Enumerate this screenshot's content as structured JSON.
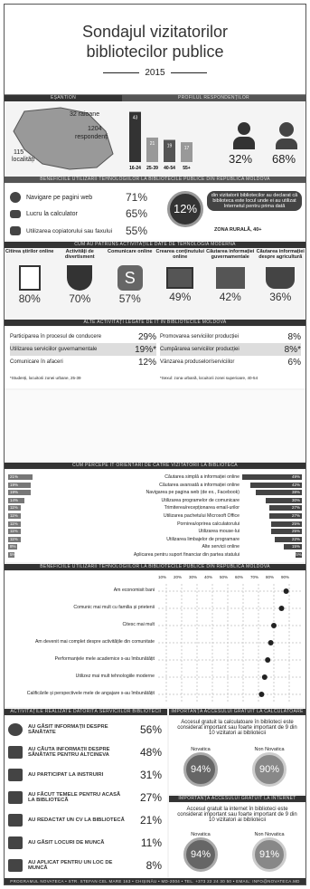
{
  "header": {
    "title_line1": "Sondajul vizitatorilor",
    "title_line2": "bibliotecilor publice",
    "year": "2015"
  },
  "sample": {
    "section_label": "EȘANTION",
    "profile_label": "PROFILUL RESPONDENȚILOR",
    "raioane": "32 raioane",
    "respondenti_count": "1204",
    "respondenti_label": "respondenți",
    "localitati_count": "115",
    "localitati_label": "localități",
    "age_values": [
      {
        "label": "16-24",
        "value": "43"
      },
      {
        "label": "25-39",
        "value": "21"
      },
      {
        "label": "40-54",
        "value": "19"
      },
      {
        "label": "55+",
        "value": "17"
      }
    ],
    "male_pct": "32%",
    "female_pct": "68%"
  },
  "benefits": {
    "section_label": "BENEFICIILE UTILIZĂRII TEHNOLOGIILOR LA BIBLIOTECILE PUBLICE DIN REPUBLICA MOLDOVA",
    "items": [
      {
        "label": "Navigare pe pagini web",
        "pct": "71%"
      },
      {
        "label": "Lucru la calculator",
        "pct": "65%"
      },
      {
        "label": "Utilizarea copiatorului sau faxului",
        "pct": "55%"
      }
    ],
    "highlight_pct": "12%",
    "highlight_text": "din vizitatorii bibliotecilor au declarat că biblioteca este locul unde ei au utilizat Internetul pentru prima dată",
    "highlight_note": "ZONA RURALĂ, 40+"
  },
  "activities": {
    "section_label": "CUM AU PĂTRUNS ACTIVITĂȚILE DATE DE TEHNOLOGIA MODERNĂ",
    "items": [
      {
        "label": "Citirea știrilor online",
        "pct": "80%"
      },
      {
        "label": "Activități de divertisment",
        "pct": "70%"
      },
      {
        "label": "Comunicare online",
        "pct": "57%"
      },
      {
        "label": "Crearea conținutului online",
        "pct": "49%"
      },
      {
        "label": "Căutarea informației guvernamentale",
        "pct": "42%"
      },
      {
        "label": "Căutarea informației despre agricultură",
        "pct": "36%"
      }
    ]
  },
  "other_activities": {
    "section_label": "ALTE ACTIVITĂȚI LEGATE DE IT ÎN BIBLIOTECILE MOLDOVA",
    "left": [
      {
        "label": "Participarea în procesul de conducere",
        "pct": "29%"
      },
      {
        "label": "Utilizarea serviciilor guvernamentale",
        "pct": "19%*"
      },
      {
        "label": "Comunicare în afaceri",
        "pct": "12%"
      }
    ],
    "right": [
      {
        "label": "Promovarea serviciilor producției",
        "pct": "8%"
      },
      {
        "label": "Cumpărarea serviciilor producției",
        "pct": "8%*"
      },
      {
        "label": "Vânzarea produselor/serviciilor",
        "pct": "6%"
      }
    ],
    "note_left": "*Studenți, locuitorii zonei urbane, 25-39",
    "note_right": "*Sexul: zona urbană, locuitorii zonei superioare, 40-54"
  },
  "services": {
    "section_label": "CUM PERCEPE IT ORIENTĂRI DE CĂTRE VIZITATORII LA BIBLIOTECĂ",
    "items": [
      {
        "label": "Căutarea simplă a informației online",
        "left_pct": "21%",
        "right_pct": "49%"
      },
      {
        "label": "Căutarea avansată a informației online",
        "left_pct": "19%",
        "right_pct": "42%"
      },
      {
        "label": "Navigarea pe pagina web (de ex., Facebook)",
        "left_pct": "19%",
        "right_pct": "38%"
      },
      {
        "label": "Utilizarea programelor de comunicare",
        "left_pct": "14%",
        "right_pct": "30%"
      },
      {
        "label": "Trimiterea/recepționarea email-urilor",
        "left_pct": "11%",
        "right_pct": "27%"
      },
      {
        "label": "Utilizarea pachetului Microsoft Office",
        "left_pct": "11%",
        "right_pct": "27%"
      },
      {
        "label": "Pornirea/oprirea calculatorului",
        "left_pct": "11%",
        "right_pct": "25%"
      },
      {
        "label": "Utilizarea mouse-lui",
        "left_pct": "11%",
        "right_pct": "25%"
      },
      {
        "label": "Utilizarea limbajelor de programare",
        "left_pct": "11%",
        "right_pct": "22%"
      },
      {
        "label": "Alte servicii online",
        "left_pct": "8%",
        "right_pct": "15%"
      },
      {
        "label": "Aplicarea pentru suport financiar din partea statului",
        "left_pct": "5%",
        "right_pct": "5%"
      }
    ]
  },
  "opinion": {
    "section_label": "BENEFICIILE UTILIZĂRII TEHNOLOGIILOR LA BIBLIOTECILE PUBLICE DIN REPUBLICA MOLDOVA",
    "axis_ticks": [
      "10%",
      "20%",
      "30%",
      "40%",
      "50%",
      "60%",
      "70%",
      "80%",
      "90%"
    ],
    "rows": [
      {
        "label": "Am economisit bani",
        "value": 88
      },
      {
        "label": "Comunic mai mult cu familia și prietenii",
        "value": 85
      },
      {
        "label": "Citesc mai mult",
        "value": 80
      },
      {
        "label": "Am devenit mai complet despre activitățile din comunitate",
        "value": 78
      },
      {
        "label": "Performanțele mele academice s-au îmbunătățit",
        "value": 76
      },
      {
        "label": "Utilizez mai mult tehnologiile moderne",
        "value": 74
      },
      {
        "label": "Calificările și perspectivele mele de angajare s-au îmbunătățit",
        "value": 72
      }
    ]
  },
  "outcomes": {
    "section_label": "ACTIVITĂȚILE REALIZATE DATORITĂ SERVICIILOR BIBLIOTECII",
    "items": [
      {
        "label": "AU GĂSIT INFORMAȚII DESPRE SĂNĂTATE",
        "pct": "56%"
      },
      {
        "label": "AU CĂUTA INFORMAȚII DESPRE SĂNĂTATE PENTRU ALTCINEVA",
        "pct": "48%"
      },
      {
        "label": "AU PARTICIPAT LA INSTRUIRI",
        "pct": "31%"
      },
      {
        "label": "AU FĂCUT TEMELE PENTRU ACASĂ LA BIBLIOTECĂ",
        "pct": "27%"
      },
      {
        "label": "AU REDACTAT UN CV LA BIBLIOTECĂ",
        "pct": "21%"
      },
      {
        "label": "AU GĂSIT LOCURI DE MUNCĂ",
        "pct": "11%"
      },
      {
        "label": "AU APLICAT PENTRU UN LOC DE MUNCĂ",
        "pct": "8%"
      }
    ]
  },
  "access_calc": {
    "section_label": "IMPORTANȚA ACCESULUI GRATUIT LA CALCULATOARE",
    "text": "Accesul gratuit la calculatoare în biblioteci este considerat important sau foarte important de 9 din 10 vizitatori ai bibliotecii",
    "a_label": "Novatica",
    "a_pct": "94%",
    "b_label": "Non Novatica",
    "b_pct": "90%"
  },
  "access_inet": {
    "section_label": "IMPORTANȚA ACCESULUI GRATUIT LA INTERNET",
    "text": "Accesul gratuit la internet în biblioteci este considerat important sau foarte important de 9 din 10 vizitatori ai bibliotecii",
    "a_label": "Novatica",
    "a_pct": "94%",
    "b_label": "Non Novatica",
    "b_pct": "91%"
  },
  "footer": {
    "text": "PROGRAMUL NOVATECA • STR. STEFAN CEL MARE 163 • CHIȘINĂU • MD-2004 • TEL. +373 22 24 30 50 • EMAIL: INFO@NOVATECA.MD"
  },
  "colors": {
    "dark": "#333333",
    "mid": "#777777",
    "light": "#f4f4f4"
  }
}
